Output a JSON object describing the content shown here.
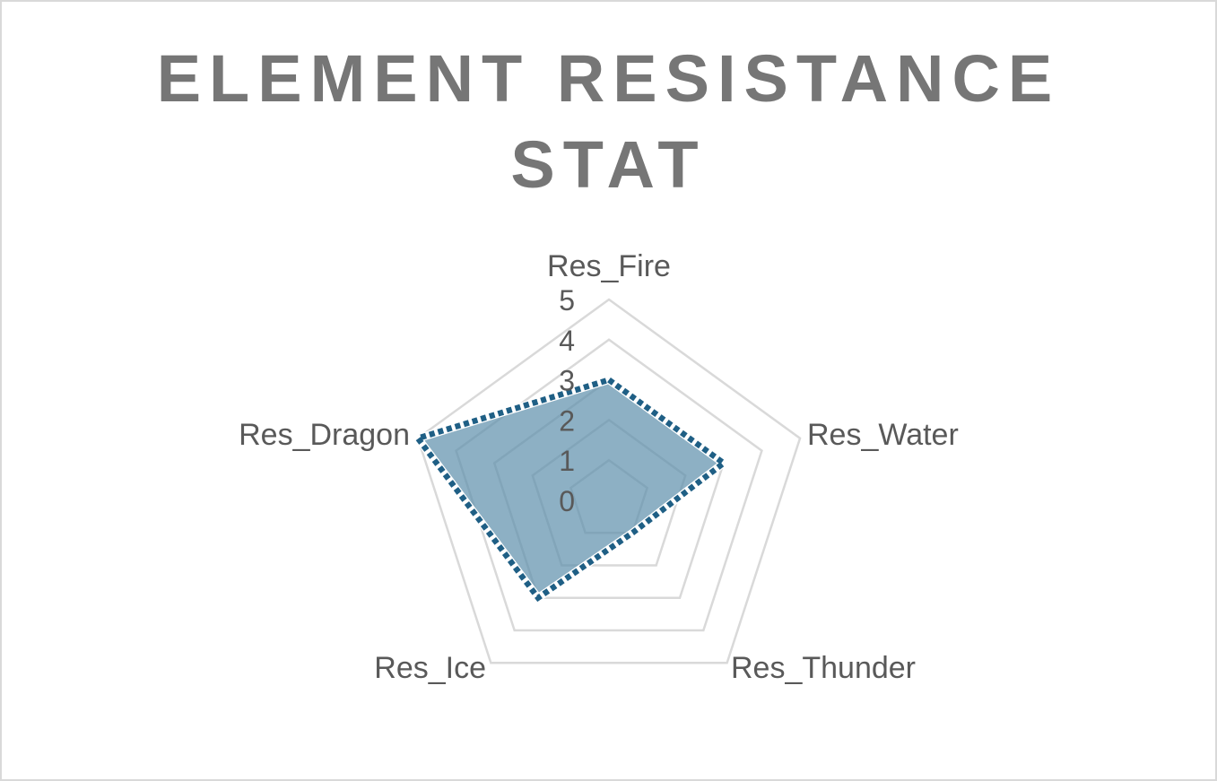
{
  "chart_data": {
    "type": "radar",
    "title_lines": [
      "ELEMENT RESISTANCE",
      "STAT"
    ],
    "categories": [
      "Res_Fire",
      "Res_Water",
      "Res_Thunder",
      "Res_Ice",
      "Res_Dragon"
    ],
    "series": [
      {
        "values": [
          3,
          3,
          1,
          3,
          5
        ]
      }
    ],
    "rlim": [
      0,
      5
    ],
    "ticks": [
      "0",
      "1",
      "2",
      "3",
      "4",
      "5"
    ],
    "grid": true,
    "legend": "none",
    "colors": {
      "grid": "#d9d9d9",
      "fill": "#5d8fab",
      "fill_opacity": 0.7,
      "line": "#1f5f85",
      "text": "#595959",
      "title": "#767676"
    }
  }
}
